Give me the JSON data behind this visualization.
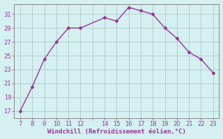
{
  "x": [
    7,
    8,
    9,
    10,
    11,
    12,
    14,
    15,
    16,
    17,
    18,
    19,
    20,
    21,
    22,
    23
  ],
  "y": [
    17,
    20.5,
    24.5,
    27,
    29,
    29,
    30.5,
    30,
    32,
    31.5,
    31,
    29,
    27.5,
    25.5,
    24.5,
    22.5
  ],
  "x_all": [
    7,
    8,
    9,
    10,
    11,
    12,
    13,
    14,
    15,
    16,
    17,
    18,
    19,
    20,
    21,
    22,
    23
  ],
  "x_labels": [
    "7",
    "8",
    "9",
    "10",
    "11",
    "12",
    "",
    "14",
    "15",
    "16",
    "17",
    "18",
    "19",
    "20",
    "21",
    "22",
    "23"
  ],
  "line_color": "#993399",
  "marker_color": "#993399",
  "bg_color": "#d4f0f0",
  "grid_color": "#b0c8c8",
  "xlabel": "Windchill (Refroidissement éolien,°C)",
  "xlabel_color": "#993399",
  "tick_color": "#993399",
  "ylim_min": 16,
  "ylim_max": 32.5,
  "yticks": [
    17,
    19,
    21,
    23,
    25,
    27,
    29,
    31
  ],
  "xlim_min": 6.5,
  "xlim_max": 23.5
}
